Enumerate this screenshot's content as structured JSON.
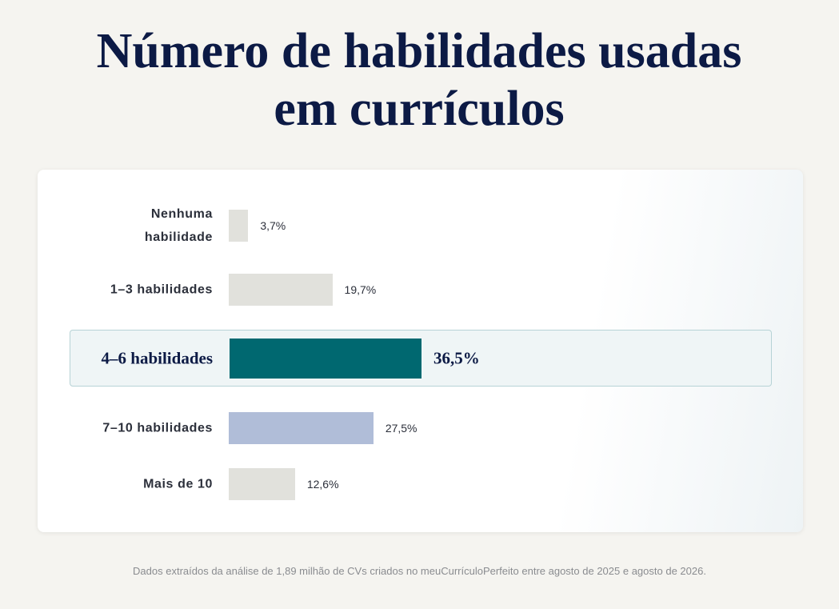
{
  "chart_data": {
    "type": "bar",
    "orientation": "horizontal",
    "title": "Número de habilidades usadas em currículos",
    "categories": [
      "Nenhuma habilidade",
      "1–3 habilidades",
      "4–6 habilidades",
      "7–10 habilidades",
      "Mais de 10"
    ],
    "values": [
      3.7,
      19.7,
      36.5,
      27.5,
      12.6
    ],
    "value_labels": [
      "3,7%",
      "19,7%",
      "36,5%",
      "27,5%",
      "12,6%"
    ],
    "colors": [
      "#e1e1dc",
      "#e1e1dc",
      "#006870",
      "#b0bdd8",
      "#e1e1dc"
    ],
    "highlight": 2,
    "note": "Dados extraídos da análise de 1,89 milhão de CVs criados no meuCurrículoPerfeito entre agosto de 2025 e agosto de 2026."
  }
}
